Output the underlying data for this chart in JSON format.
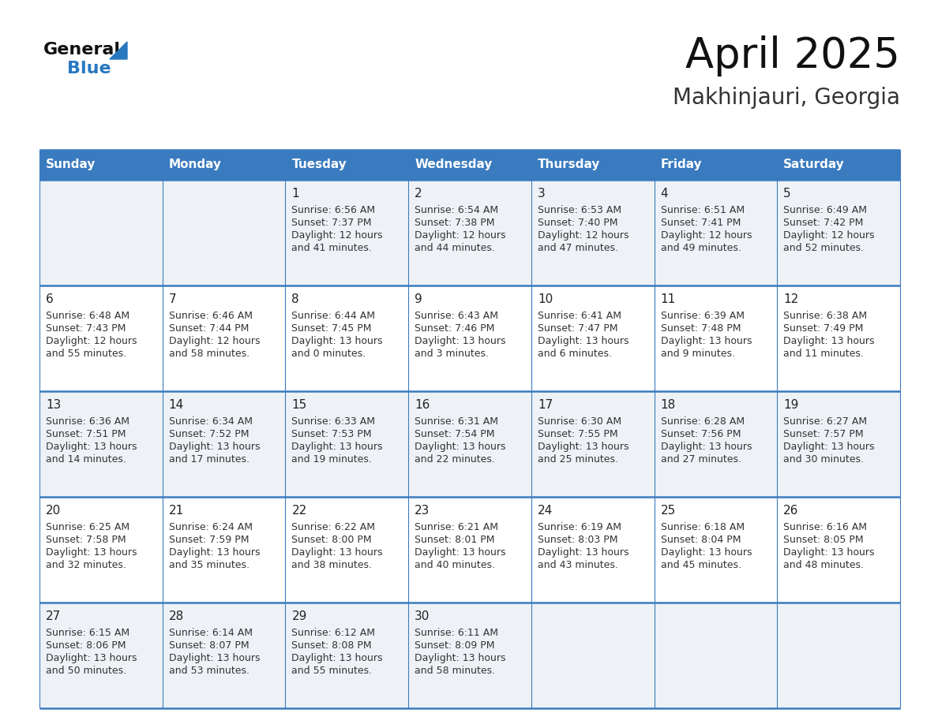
{
  "title": "April 2025",
  "subtitle": "Makhinjauri, Georgia",
  "days_of_week": [
    "Sunday",
    "Monday",
    "Tuesday",
    "Wednesday",
    "Thursday",
    "Friday",
    "Saturday"
  ],
  "header_bg": "#3a7bbf",
  "header_text": "#ffffff",
  "row_bg_light": "#eef2f7",
  "row_bg_white": "#ffffff",
  "separator_color": "#3a7bbf",
  "day_num_color": "#222222",
  "cell_text_color": "#333333",
  "title_color": "#111111",
  "subtitle_color": "#333333",
  "logo_black": "#111111",
  "logo_blue": "#2878c0",
  "calendar": [
    [
      {
        "day": null,
        "sunrise": null,
        "sunset": null,
        "daylight": null
      },
      {
        "day": null,
        "sunrise": null,
        "sunset": null,
        "daylight": null
      },
      {
        "day": 1,
        "sunrise": "6:56 AM",
        "sunset": "7:37 PM",
        "daylight": "12 hours\nand 41 minutes."
      },
      {
        "day": 2,
        "sunrise": "6:54 AM",
        "sunset": "7:38 PM",
        "daylight": "12 hours\nand 44 minutes."
      },
      {
        "day": 3,
        "sunrise": "6:53 AM",
        "sunset": "7:40 PM",
        "daylight": "12 hours\nand 47 minutes."
      },
      {
        "day": 4,
        "sunrise": "6:51 AM",
        "sunset": "7:41 PM",
        "daylight": "12 hours\nand 49 minutes."
      },
      {
        "day": 5,
        "sunrise": "6:49 AM",
        "sunset": "7:42 PM",
        "daylight": "12 hours\nand 52 minutes."
      }
    ],
    [
      {
        "day": 6,
        "sunrise": "6:48 AM",
        "sunset": "7:43 PM",
        "daylight": "12 hours\nand 55 minutes."
      },
      {
        "day": 7,
        "sunrise": "6:46 AM",
        "sunset": "7:44 PM",
        "daylight": "12 hours\nand 58 minutes."
      },
      {
        "day": 8,
        "sunrise": "6:44 AM",
        "sunset": "7:45 PM",
        "daylight": "13 hours\nand 0 minutes."
      },
      {
        "day": 9,
        "sunrise": "6:43 AM",
        "sunset": "7:46 PM",
        "daylight": "13 hours\nand 3 minutes."
      },
      {
        "day": 10,
        "sunrise": "6:41 AM",
        "sunset": "7:47 PM",
        "daylight": "13 hours\nand 6 minutes."
      },
      {
        "day": 11,
        "sunrise": "6:39 AM",
        "sunset": "7:48 PM",
        "daylight": "13 hours\nand 9 minutes."
      },
      {
        "day": 12,
        "sunrise": "6:38 AM",
        "sunset": "7:49 PM",
        "daylight": "13 hours\nand 11 minutes."
      }
    ],
    [
      {
        "day": 13,
        "sunrise": "6:36 AM",
        "sunset": "7:51 PM",
        "daylight": "13 hours\nand 14 minutes."
      },
      {
        "day": 14,
        "sunrise": "6:34 AM",
        "sunset": "7:52 PM",
        "daylight": "13 hours\nand 17 minutes."
      },
      {
        "day": 15,
        "sunrise": "6:33 AM",
        "sunset": "7:53 PM",
        "daylight": "13 hours\nand 19 minutes."
      },
      {
        "day": 16,
        "sunrise": "6:31 AM",
        "sunset": "7:54 PM",
        "daylight": "13 hours\nand 22 minutes."
      },
      {
        "day": 17,
        "sunrise": "6:30 AM",
        "sunset": "7:55 PM",
        "daylight": "13 hours\nand 25 minutes."
      },
      {
        "day": 18,
        "sunrise": "6:28 AM",
        "sunset": "7:56 PM",
        "daylight": "13 hours\nand 27 minutes."
      },
      {
        "day": 19,
        "sunrise": "6:27 AM",
        "sunset": "7:57 PM",
        "daylight": "13 hours\nand 30 minutes."
      }
    ],
    [
      {
        "day": 20,
        "sunrise": "6:25 AM",
        "sunset": "7:58 PM",
        "daylight": "13 hours\nand 32 minutes."
      },
      {
        "day": 21,
        "sunrise": "6:24 AM",
        "sunset": "7:59 PM",
        "daylight": "13 hours\nand 35 minutes."
      },
      {
        "day": 22,
        "sunrise": "6:22 AM",
        "sunset": "8:00 PM",
        "daylight": "13 hours\nand 38 minutes."
      },
      {
        "day": 23,
        "sunrise": "6:21 AM",
        "sunset": "8:01 PM",
        "daylight": "13 hours\nand 40 minutes."
      },
      {
        "day": 24,
        "sunrise": "6:19 AM",
        "sunset": "8:03 PM",
        "daylight": "13 hours\nand 43 minutes."
      },
      {
        "day": 25,
        "sunrise": "6:18 AM",
        "sunset": "8:04 PM",
        "daylight": "13 hours\nand 45 minutes."
      },
      {
        "day": 26,
        "sunrise": "6:16 AM",
        "sunset": "8:05 PM",
        "daylight": "13 hours\nand 48 minutes."
      }
    ],
    [
      {
        "day": 27,
        "sunrise": "6:15 AM",
        "sunset": "8:06 PM",
        "daylight": "13 hours\nand 50 minutes."
      },
      {
        "day": 28,
        "sunrise": "6:14 AM",
        "sunset": "8:07 PM",
        "daylight": "13 hours\nand 53 minutes."
      },
      {
        "day": 29,
        "sunrise": "6:12 AM",
        "sunset": "8:08 PM",
        "daylight": "13 hours\nand 55 minutes."
      },
      {
        "day": 30,
        "sunrise": "6:11 AM",
        "sunset": "8:09 PM",
        "daylight": "13 hours\nand 58 minutes."
      },
      {
        "day": null,
        "sunrise": null,
        "sunset": null,
        "daylight": null
      },
      {
        "day": null,
        "sunrise": null,
        "sunset": null,
        "daylight": null
      },
      {
        "day": null,
        "sunrise": null,
        "sunset": null,
        "daylight": null
      }
    ]
  ]
}
